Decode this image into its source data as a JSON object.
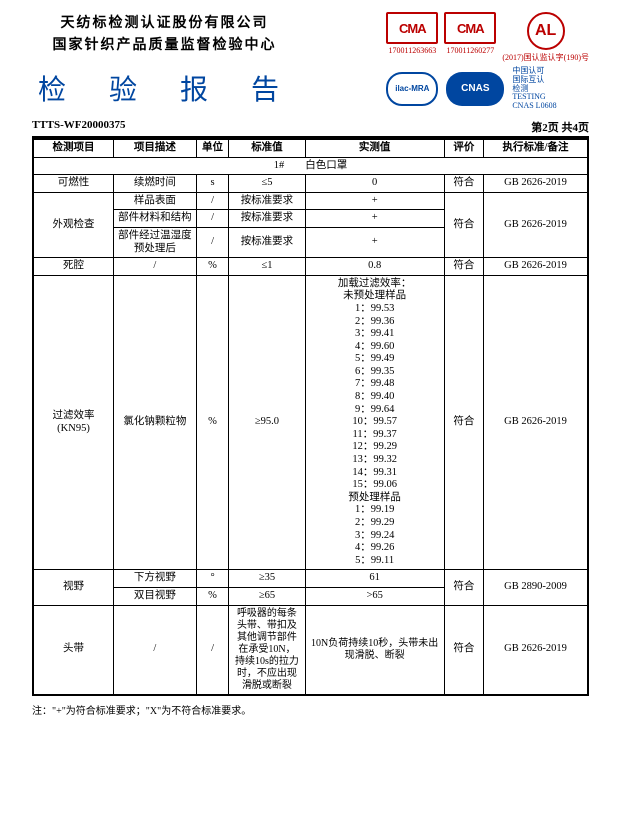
{
  "header": {
    "institution_line1": "天纺标检测认证股份有限公司",
    "institution_line2": "国家针织产品质量监督检验中心",
    "report_title": "检 验 报 告"
  },
  "logos": {
    "cma1_label": "CMA",
    "cma1_num": "170011263663",
    "cma2_label": "CMA",
    "cma2_num": "170011260277",
    "al_label": "AL",
    "al_num": "(2017)国认监认字(190)号",
    "ilac_label": "ilac-MRA",
    "cnas_label": "CNAS",
    "cnas_text1": "中国认可",
    "cnas_text2": "国际互认",
    "cnas_text3": "检测",
    "cnas_text4": "TESTING",
    "cnas_text5": "CNAS L0608"
  },
  "docinfo": {
    "report_no": "TTTS-WF20000375",
    "page_info": "第2页  共4页"
  },
  "table": {
    "headers": {
      "item": "检测项目",
      "desc": "项目描述",
      "unit": "单位",
      "std": "标准值",
      "meas": "实测值",
      "eval": "评价",
      "ref": "执行标准/备注"
    },
    "sample_row": "1#　　白色口罩",
    "rows": [
      {
        "item": "可燃性",
        "desc": "续燃时间",
        "unit": "s",
        "std": "≤5",
        "meas": "0",
        "eval": "符合",
        "ref": "GB 2626-2019"
      },
      {
        "item": "外观检查",
        "desc": "样品表面",
        "unit": "/",
        "std": "按标准要求",
        "meas": "+",
        "eval": "符合",
        "ref": "GB 2626-2019"
      },
      {
        "desc": "部件材料和结构",
        "unit": "/",
        "std": "按标准要求",
        "meas": "+"
      },
      {
        "desc": "部件经过温湿度预处理后",
        "unit": "/",
        "std": "按标准要求",
        "meas": "+"
      },
      {
        "item": "死腔",
        "desc": "/",
        "unit": "%",
        "std": "≤1",
        "meas": "0.8",
        "eval": "符合",
        "ref": "GB 2626-2019"
      },
      {
        "item": "过滤效率\n(KN95)",
        "desc": "氯化钠颗粒物",
        "unit": "%",
        "std": "≥95.0",
        "eval": "符合",
        "ref": "GB 2626-2019"
      },
      {
        "item": "视野",
        "desc": "下方视野",
        "unit": "°",
        "std": "≥35",
        "meas": "61",
        "eval": "符合",
        "ref": "GB 2890-2009"
      },
      {
        "desc": "双目视野",
        "unit": "%",
        "std": "≥65",
        "meas": ">65"
      },
      {
        "item": "头带",
        "desc": "/",
        "unit": "/",
        "std": "呼吸器的每条头带、带扣及其他调节部件在承受10N，持续10s的拉力时，不应出现滑脱或断裂",
        "meas": "10N负荷持续10秒，头带未出现滑脱、断裂",
        "eval": "符合",
        "ref": "GB 2626-2019"
      }
    ],
    "filter_meas": {
      "title1": "加载过滤效率：",
      "title2": "未预处理样品",
      "vals1": [
        "1：99.53",
        "2：99.36",
        "3：99.41",
        "4：99.60",
        "5：99.49",
        "6：99.35",
        "7：99.48",
        "8：99.40",
        "9：99.64",
        "10：99.57",
        "11：99.37",
        "12：99.29",
        "13：99.32",
        "14：99.31",
        "15：99.06"
      ],
      "title3": "预处理样品",
      "vals2": [
        "1：99.19",
        "2：99.29",
        "3：99.24",
        "4：99.26",
        "5：99.11"
      ]
    }
  },
  "colors": {
    "title_blue": "#0046a0",
    "badge_red": "#b00"
  },
  "footnote": "注：\"+\"为符合标准要求；\"X\"为不符合标准要求。"
}
